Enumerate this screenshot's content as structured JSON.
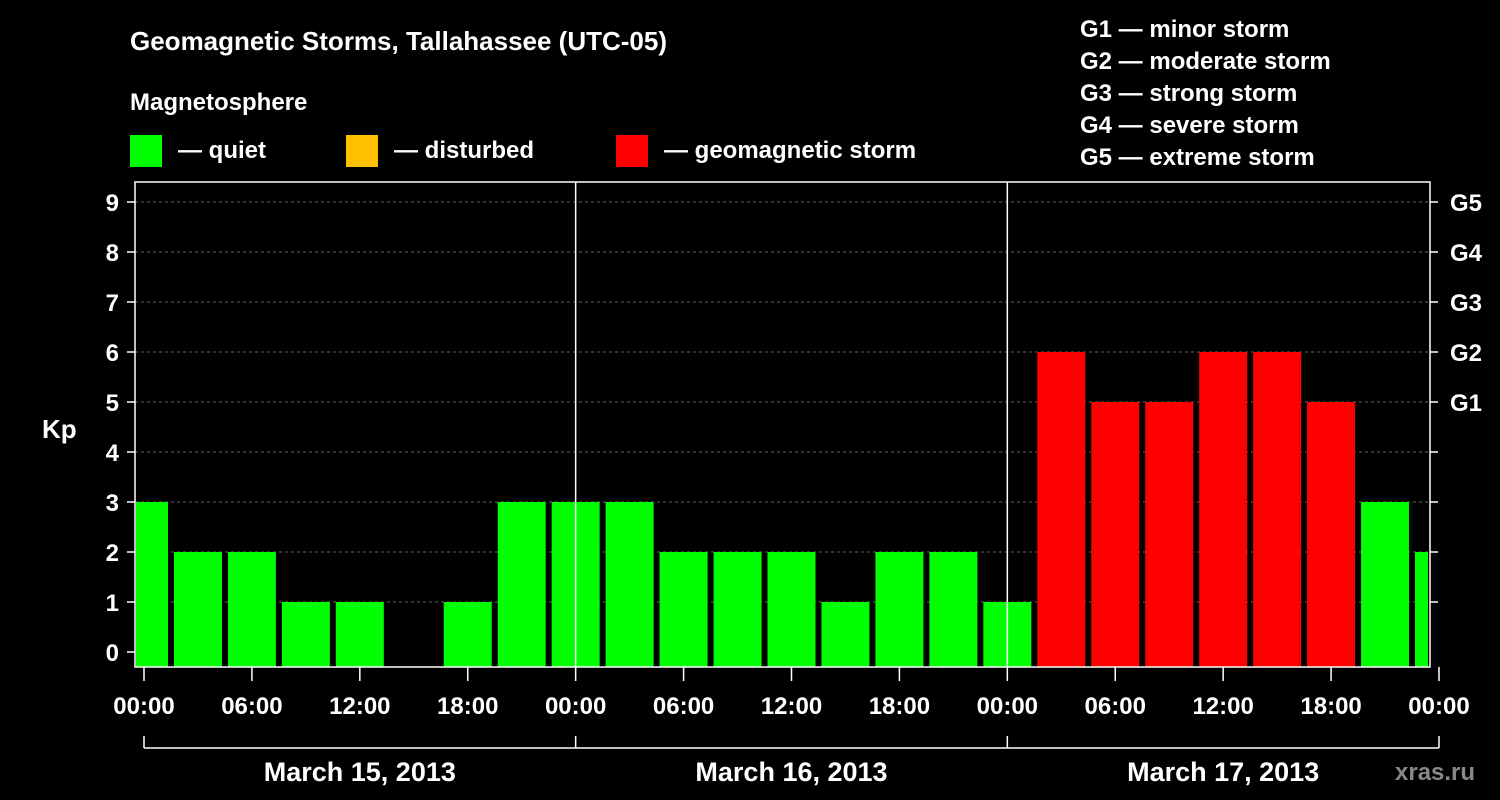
{
  "title": "Geomagnetic Storms, Tallahassee (UTC-05)",
  "legend": {
    "heading": "Magnetosphere",
    "items": [
      {
        "label": "— quiet",
        "color": "#00ff00"
      },
      {
        "label": "— disturbed",
        "color": "#ffc000"
      },
      {
        "label": "— geomagnetic storm",
        "color": "#ff0000"
      }
    ],
    "storm_levels": [
      "G1 — minor storm",
      "G2 — moderate storm",
      "G3 — strong storm",
      "G4 — severe storm",
      "G5 — extreme storm"
    ]
  },
  "watermark": "xras.ru",
  "chart_data": {
    "type": "bar",
    "ylabel": "Kp",
    "ylim": [
      0,
      9
    ],
    "yticks": [
      "0",
      "1",
      "2",
      "3",
      "4",
      "5",
      "6",
      "7",
      "8",
      "9"
    ],
    "right_ticks": [
      {
        "label": "G1",
        "value": 5
      },
      {
        "label": "G2",
        "value": 6
      },
      {
        "label": "G3",
        "value": 7
      },
      {
        "label": "G4",
        "value": 8
      },
      {
        "label": "G5",
        "value": 9
      }
    ],
    "xlim_hours": [
      -0.5,
      71.5
    ],
    "xtick_labels": [
      "00:00",
      "06:00",
      "12:00",
      "18:00",
      "00:00",
      "06:00",
      "12:00",
      "18:00",
      "00:00",
      "06:00",
      "12:00",
      "18:00",
      "00:00"
    ],
    "date_labels": [
      "March 15, 2013",
      "March 16, 2013",
      "March 17, 2013"
    ],
    "grid": true,
    "bar_start_hours": [
      -1.5,
      1.5,
      4.5,
      7.5,
      10.5,
      13.5,
      16.5,
      19.5,
      22.5,
      25.5,
      28.5,
      31.5,
      34.5,
      37.5,
      40.5,
      43.5,
      46.5,
      49.5,
      52.5,
      55.5,
      58.5,
      61.5,
      64.5,
      67.5,
      70.5
    ],
    "values": [
      3,
      2,
      2,
      1,
      1,
      0,
      1,
      3,
      3,
      3,
      2,
      2,
      2,
      1,
      2,
      2,
      1,
      6,
      5,
      5,
      6,
      6,
      5,
      3,
      2
    ],
    "bar_colors": [
      "#00ff00",
      "#00ff00",
      "#00ff00",
      "#00ff00",
      "#00ff00",
      "#00ff00",
      "#00ff00",
      "#00ff00",
      "#00ff00",
      "#00ff00",
      "#00ff00",
      "#00ff00",
      "#00ff00",
      "#00ff00",
      "#00ff00",
      "#00ff00",
      "#00ff00",
      "#ff0000",
      "#ff0000",
      "#ff0000",
      "#ff0000",
      "#ff0000",
      "#ff0000",
      "#00ff00",
      "#00ff00"
    ]
  }
}
